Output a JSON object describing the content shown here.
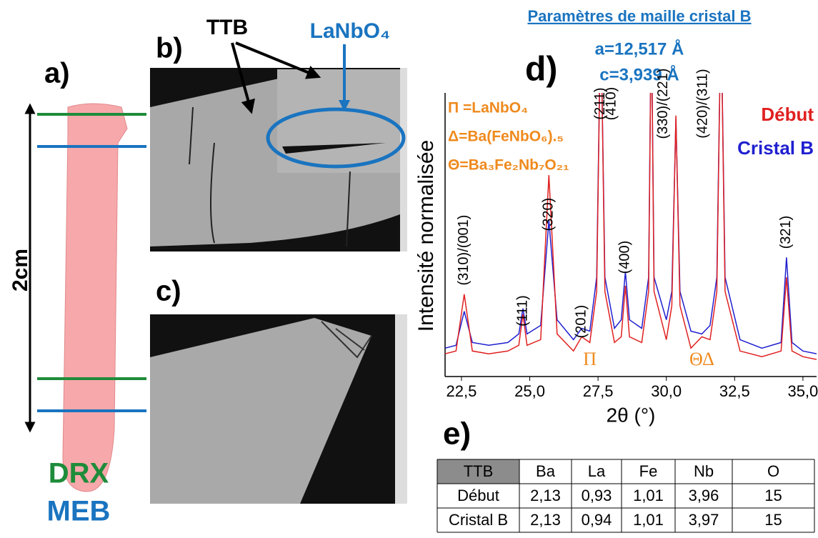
{
  "panels": {
    "a": "a)",
    "b": "b)",
    "c": "c)",
    "d": "d)",
    "e": "e)"
  },
  "rod": {
    "length_label": "2cm",
    "drx": "DRX",
    "meb": "MEB"
  },
  "image_b": {
    "ttb": "TTB",
    "lanbo4": "LaNbO₄"
  },
  "chart_data": {
    "type": "line",
    "title": "Paramètres de maille cristal B",
    "subtitle": [
      "a=12,517 Å",
      "c=3,939 Å"
    ],
    "x_label": "2θ (°)",
    "y_label": "Intensité normalisée",
    "xlim": [
      21.9,
      35.5
    ],
    "ylim": [
      0,
      1
    ],
    "xticks": [
      {
        "value": 22.5,
        "label": "22,5"
      },
      {
        "value": 25.0,
        "label": "25,0"
      },
      {
        "value": 27.5,
        "label": "27,5"
      },
      {
        "value": 30.0,
        "label": "30,0"
      },
      {
        "value": 32.5,
        "label": "32,5"
      },
      {
        "value": 35.0,
        "label": "35,0"
      }
    ],
    "legend": "upper right",
    "x": [
      21.9,
      22.3,
      22.6,
      22.9,
      23.5,
      24.2,
      24.6,
      24.75,
      24.9,
      25.4,
      25.7,
      26.0,
      26.6,
      26.9,
      27.2,
      27.45,
      27.6,
      27.75,
      28.1,
      28.35,
      28.5,
      28.65,
      29.1,
      29.35,
      29.45,
      29.55,
      30.0,
      30.2,
      30.35,
      30.5,
      30.9,
      31.3,
      31.6,
      31.85,
      32.0,
      32.15,
      32.7,
      33.5,
      34.2,
      34.4,
      34.6,
      35.0,
      35.5
    ],
    "series": [
      {
        "name": "Cristal B",
        "color": "#2020d0",
        "values": [
          0.1,
          0.11,
          0.23,
          0.12,
          0.11,
          0.12,
          0.15,
          0.24,
          0.15,
          0.18,
          0.55,
          0.2,
          0.13,
          0.17,
          0.16,
          0.35,
          1.3,
          0.35,
          0.17,
          0.2,
          0.37,
          0.2,
          0.17,
          0.35,
          1.3,
          0.35,
          0.2,
          0.3,
          0.91,
          0.3,
          0.16,
          0.15,
          0.18,
          0.35,
          1.3,
          0.35,
          0.13,
          0.1,
          0.12,
          0.42,
          0.12,
          0.09,
          0.08
        ]
      },
      {
        "name": "Début",
        "color": "#e02020",
        "values": [
          0.08,
          0.09,
          0.29,
          0.09,
          0.08,
          0.09,
          0.11,
          0.22,
          0.11,
          0.13,
          0.71,
          0.15,
          0.09,
          0.14,
          0.12,
          0.3,
          1.3,
          0.3,
          0.12,
          0.14,
          0.32,
          0.14,
          0.12,
          0.3,
          1.3,
          0.3,
          0.13,
          0.25,
          0.92,
          0.25,
          0.1,
          0.14,
          0.13,
          0.3,
          1.3,
          0.3,
          0.09,
          0.07,
          0.09,
          0.35,
          0.09,
          0.07,
          0.06
        ]
      }
    ],
    "phase_legend": [
      "Π =LaNbO₄",
      "Δ=Ba(FeNbO₆).₅",
      "Θ=Ba₃Fe₂Nb₇O₂₁"
    ],
    "peak_labels": [
      {
        "label": "(310)/(001)",
        "x": 22.6
      },
      {
        "label": "(111)",
        "x": 24.75
      },
      {
        "label": "(320)",
        "x": 25.7
      },
      {
        "label": "(201)",
        "x": 26.9
      },
      {
        "label": "(211)",
        "x": 27.6
      },
      {
        "label": "(400)",
        "x": 28.5
      },
      {
        "label": "(410)",
        "x": 28.0
      },
      {
        "label": "(330)/(221)",
        "x": 29.9
      },
      {
        "label": "(420)/(311)",
        "x": 31.35
      },
      {
        "label": "(321)",
        "x": 34.4
      }
    ],
    "phase_markers": [
      {
        "label": "Π",
        "x": 27.2
      },
      {
        "label": "ΘΔ",
        "x": 31.3
      }
    ]
  },
  "table": {
    "header": [
      "TTB",
      "Ba",
      "La",
      "Fe",
      "Nb",
      "O"
    ],
    "rows": [
      [
        "Début",
        "2,13",
        "0,93",
        "1,01",
        "3,96",
        "15"
      ],
      [
        "Cristal B",
        "2,13",
        "0,94",
        "1,01",
        "3,97",
        "15"
      ]
    ]
  }
}
